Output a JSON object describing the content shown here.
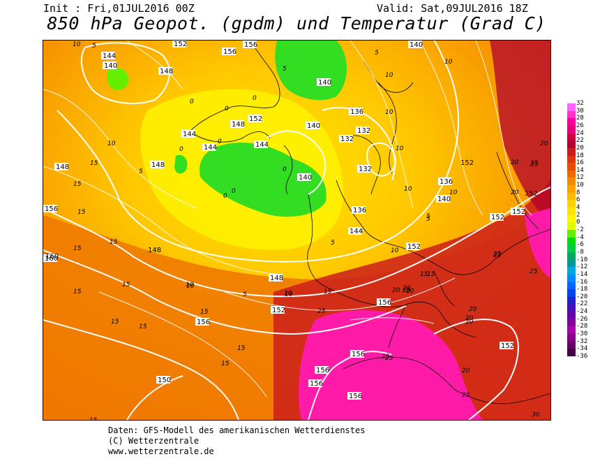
{
  "header": {
    "init": "Init : Fri,01JUL2016 00Z",
    "valid": "Valid: Sat,09JUL2016 18Z",
    "title": "850 hPa Geopot. (gpdm) und Temperatur (Grad C)"
  },
  "legend": {
    "ticks": [
      "32",
      "30",
      "28",
      "26",
      "24",
      "22",
      "20",
      "18",
      "16",
      "14",
      "12",
      "10",
      "8",
      "6",
      "4",
      "2",
      "0",
      "-2",
      "-4",
      "-6",
      "-8",
      "-10",
      "-12",
      "-14",
      "-16",
      "-18",
      "-20",
      "-22",
      "-24",
      "-26",
      "-28",
      "-30",
      "-32",
      "-34",
      "-36"
    ],
    "colors": [
      "#ff66ff",
      "#ff33cc",
      "#ff0099",
      "#e6007a",
      "#cc0044",
      "#b3002e",
      "#cc1a1a",
      "#dd3311",
      "#e64d00",
      "#f06a00",
      "#f58a00",
      "#faa300",
      "#fdbb00",
      "#ffd100",
      "#ffe600",
      "#fff700",
      "#ddff00",
      "#66ee00",
      "#00dd00",
      "#00cc44",
      "#00aa66",
      "#009999",
      "#00aadd",
      "#0088ff",
      "#0066ff",
      "#0044ee",
      "#2222cc",
      "#4411bb",
      "#6600aa",
      "#880099",
      "#aa00aa",
      "#880088",
      "#660066",
      "#440044"
    ]
  },
  "map_labels": {
    "geopotential": [
      {
        "t": "144"
      },
      {
        "t": "140"
      },
      {
        "t": "148"
      },
      {
        "t": "152"
      },
      {
        "t": "156"
      },
      {
        "t": "140"
      },
      {
        "t": "144"
      },
      {
        "t": "148"
      },
      {
        "t": "144"
      },
      {
        "t": "152"
      },
      {
        "t": "148"
      },
      {
        "t": "144"
      },
      {
        "t": "140"
      },
      {
        "t": "140"
      },
      {
        "t": "136"
      },
      {
        "t": "132"
      },
      {
        "t": "132"
      },
      {
        "t": "132"
      },
      {
        "t": "136"
      },
      {
        "t": "140"
      },
      {
        "t": "136"
      },
      {
        "t": "144"
      },
      {
        "t": "152"
      },
      {
        "t": "148"
      },
      {
        "t": "152"
      },
      {
        "t": "156"
      },
      {
        "t": "152"
      },
      {
        "t": "152"
      },
      {
        "t": "156"
      },
      {
        "t": "152"
      },
      {
        "t": "156"
      },
      {
        "t": "160"
      },
      {
        "t": "156"
      },
      {
        "t": "150"
      },
      {
        "t": "156"
      },
      {
        "t": "156"
      },
      {
        "t": "152"
      },
      {
        "t": "148"
      },
      {
        "t": "160"
      },
      {
        "t": "156"
      },
      {
        "t": "152"
      },
      {
        "t": "140"
      },
      {
        "t": "148"
      },
      {
        "t": "156"
      }
    ],
    "temperature": [
      {
        "t": "10"
      },
      {
        "t": "5"
      },
      {
        "t": "10"
      },
      {
        "t": "5"
      },
      {
        "t": "0"
      },
      {
        "t": "0"
      },
      {
        "t": "0"
      },
      {
        "t": "0"
      },
      {
        "t": "0"
      },
      {
        "t": "0"
      },
      {
        "t": "0"
      },
      {
        "t": "0"
      },
      {
        "t": "5"
      },
      {
        "t": "5"
      },
      {
        "t": "10"
      },
      {
        "t": "10"
      },
      {
        "t": "10"
      },
      {
        "t": "10"
      },
      {
        "t": "5"
      },
      {
        "t": "15"
      },
      {
        "t": "15"
      },
      {
        "t": "15"
      },
      {
        "t": "15"
      },
      {
        "t": "15"
      },
      {
        "t": "15"
      },
      {
        "t": "15"
      },
      {
        "t": "15"
      },
      {
        "t": "15"
      },
      {
        "t": "10"
      },
      {
        "t": "5"
      },
      {
        "t": "10"
      },
      {
        "t": "15"
      },
      {
        "t": "20"
      },
      {
        "t": "20"
      },
      {
        "t": "15"
      },
      {
        "t": "25"
      },
      {
        "t": "25"
      },
      {
        "t": "25"
      },
      {
        "t": "25"
      },
      {
        "t": "20"
      },
      {
        "t": "20"
      },
      {
        "t": "20"
      },
      {
        "t": "25"
      },
      {
        "t": "30"
      },
      {
        "t": "20"
      },
      {
        "t": "25"
      },
      {
        "t": "25"
      },
      {
        "t": "15"
      },
      {
        "t": "15"
      },
      {
        "t": "15"
      },
      {
        "t": "15"
      },
      {
        "t": "20"
      },
      {
        "t": "20"
      },
      {
        "t": "10"
      },
      {
        "t": "10"
      },
      {
        "t": "5"
      },
      {
        "t": "10"
      },
      {
        "t": "10"
      },
      {
        "t": "5"
      },
      {
        "t": "10"
      },
      {
        "t": "20"
      },
      {
        "t": "20"
      },
      {
        "t": "25"
      },
      {
        "t": "20"
      },
      {
        "t": "15"
      },
      {
        "t": "25"
      }
    ]
  },
  "footer": {
    "line1": "Daten: GFS-Modell des amerikanischen Wetterdienstes",
    "line2": "(C) Wetterzentrale",
    "line3": "www.wetterzentrale.de"
  }
}
